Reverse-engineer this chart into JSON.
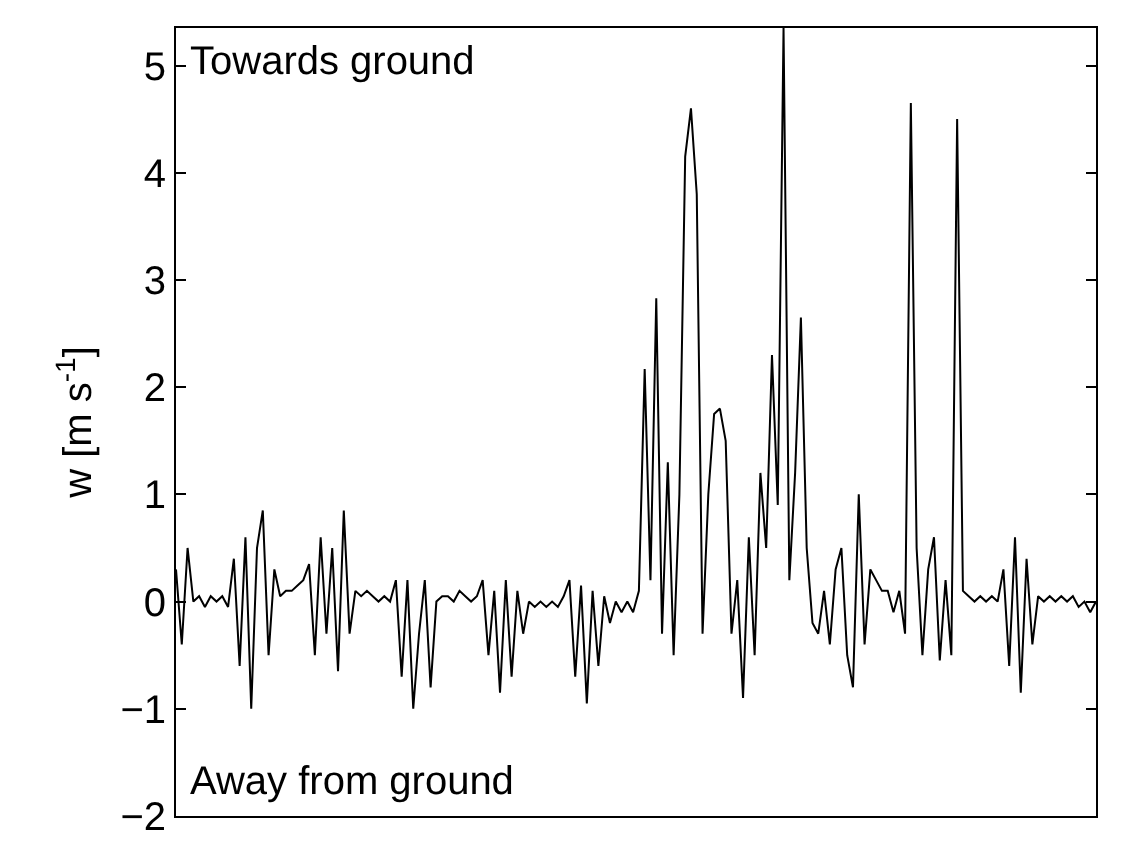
{
  "chart_data": {
    "type": "line",
    "ylabel": "w [m s$^{-1}$]",
    "categories": [
      null,
      null,
      null,
      null,
      null,
      null,
      null,
      null,
      null,
      null,
      null,
      null,
      null,
      null,
      null,
      null,
      null,
      null,
      null,
      null,
      null,
      null,
      null,
      null,
      null,
      null,
      null,
      null,
      null,
      null,
      null,
      null,
      null,
      null,
      null,
      null,
      null,
      null,
      null,
      null,
      null,
      null,
      null,
      null,
      null,
      null,
      null,
      null,
      null,
      null,
      null,
      null,
      null,
      null,
      null,
      null,
      null,
      null,
      null,
      null,
      null,
      null,
      null,
      null,
      null,
      null,
      null,
      null,
      null,
      null,
      null,
      null,
      null,
      null,
      null,
      null,
      null,
      null,
      null,
      null,
      null,
      null,
      null,
      null,
      null,
      null,
      null,
      null,
      null,
      null,
      null,
      null,
      null,
      null,
      null,
      null,
      null,
      null,
      null,
      null,
      null,
      null,
      null,
      null,
      null,
      null,
      null,
      null,
      null,
      null,
      null,
      null,
      null,
      null,
      null,
      null,
      null,
      null,
      null,
      null,
      null,
      null,
      null,
      null,
      null,
      null,
      null,
      null,
      null,
      null,
      null,
      null,
      null,
      null,
      null,
      null,
      null,
      null,
      null,
      null,
      null,
      null,
      null,
      null,
      null,
      null,
      null,
      null,
      null,
      null,
      null,
      null,
      null,
      null,
      null,
      null,
      null,
      null,
      null,
      null
    ],
    "series": [
      {
        "color": "#000000",
        "values": [
          0.3,
          -0.4,
          0.5,
          0.0,
          0.05,
          -0.05,
          0.05,
          0.0,
          0.05,
          -0.05,
          0.4,
          -0.6,
          0.6,
          -1.0,
          0.5,
          0.85,
          -0.5,
          0.3,
          0.05,
          0.1,
          0.1,
          0.15,
          0.2,
          0.35,
          -0.5,
          0.6,
          -0.3,
          0.5,
          -0.65,
          0.85,
          -0.3,
          0.1,
          0.05,
          0.1,
          0.05,
          0.0,
          0.05,
          0.0,
          0.2,
          -0.7,
          0.2,
          -1.0,
          -0.3,
          0.2,
          -0.8,
          0.0,
          0.05,
          0.05,
          0.0,
          0.1,
          0.05,
          0.0,
          0.05,
          0.2,
          -0.5,
          0.1,
          -0.85,
          0.2,
          -0.7,
          0.1,
          -0.3,
          0.0,
          -0.05,
          0.0,
          -0.05,
          0.0,
          -0.05,
          0.05,
          0.2,
          -0.7,
          0.15,
          -0.95,
          0.1,
          -0.6,
          0.05,
          -0.2,
          0.0,
          -0.1,
          0.0,
          -0.1,
          0.1,
          2.17,
          0.2,
          2.83,
          -0.3,
          1.3,
          -0.5,
          1.0,
          4.15,
          4.6,
          3.8,
          -0.3,
          1.0,
          1.75,
          1.8,
          1.5,
          -0.3,
          0.2,
          -0.9,
          0.6,
          -0.5,
          1.2,
          0.5,
          2.3,
          0.9,
          5.35,
          0.2,
          1.2,
          2.65,
          0.5,
          -0.2,
          -0.3,
          0.1,
          -0.4,
          0.3,
          0.5,
          -0.5,
          -0.8,
          1.0,
          -0.4,
          0.3,
          0.2,
          0.1,
          0.1,
          -0.1,
          0.1,
          -0.3,
          4.65,
          0.5,
          -0.5,
          0.3,
          0.6,
          -0.55,
          0.2,
          -0.5,
          4.5,
          0.1,
          0.05,
          0.0,
          0.05,
          0.0,
          0.05,
          0.0,
          0.3,
          -0.6,
          0.6,
          -0.85,
          0.4,
          -0.4,
          0.05,
          0.0,
          0.05,
          0.0,
          0.05,
          0.0,
          0.05,
          -0.05,
          0.0,
          -0.1,
          0.0
        ]
      }
    ],
    "ylim": [
      -2,
      5.35
    ],
    "yticks": [
      -2,
      -1,
      0,
      1,
      2,
      3,
      4,
      5
    ],
    "marker": "none",
    "line_style": "solid",
    "annotations": [
      "Towards ground",
      "Away from ground"
    ]
  }
}
